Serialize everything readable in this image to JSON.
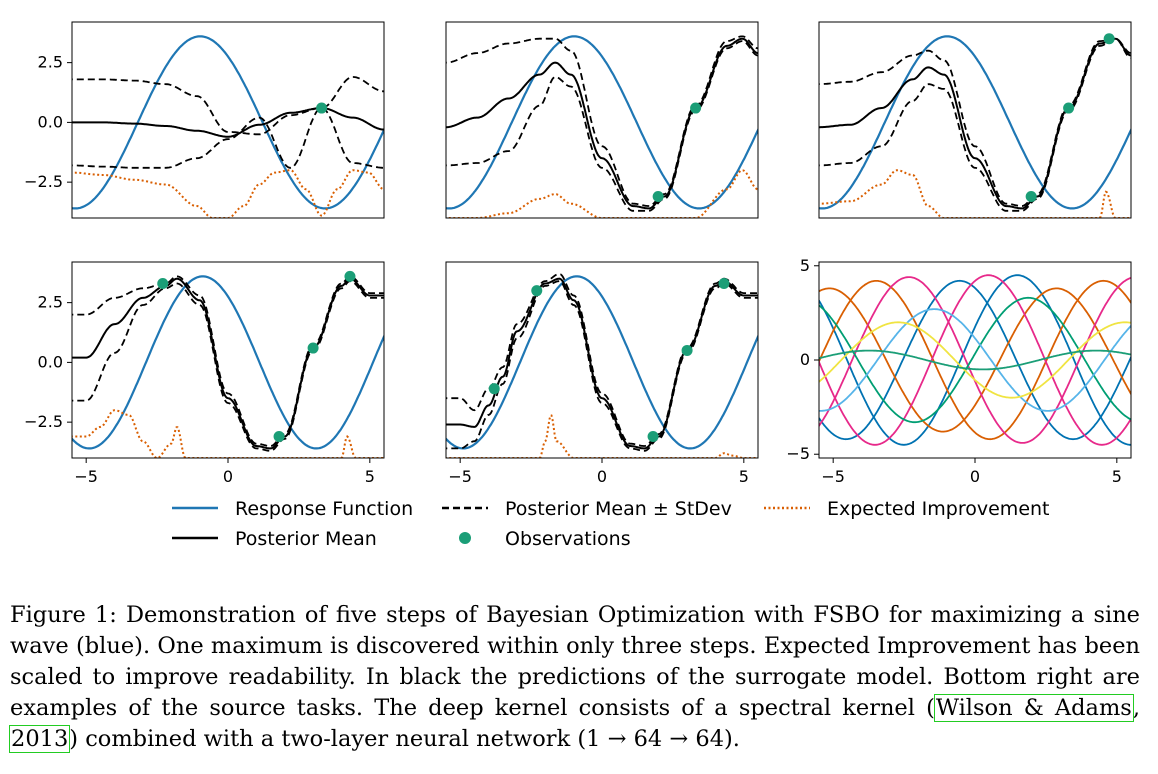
{
  "colors": {
    "response": "#1f77b4",
    "posterior": "#000000",
    "ei": "#d95f02",
    "obs": "#1b9e77",
    "source_tasks": [
      "#1b9e77",
      "#d95f02",
      "#e7298a",
      "#0072b2",
      "#56b4e9",
      "#f0e442",
      "#009e73",
      "#cc79a7"
    ]
  },
  "chart_data": [
    {
      "type": "line",
      "panel": 1,
      "xlim": [
        -5,
        5
      ],
      "ylim": [
        -4,
        4.2
      ],
      "xticks": [],
      "yticks": [
        "2.5",
        "0.0",
        "−2.5"
      ],
      "series": [
        {
          "name": "Response Function",
          "kind": "response"
        },
        {
          "name": "Posterior Mean",
          "kind": "mean",
          "x": [
            -5,
            -4,
            -3,
            -2,
            -1,
            0,
            1,
            2,
            3,
            4,
            5
          ],
          "y": [
            0,
            0,
            -0.05,
            -0.15,
            -0.35,
            -0.6,
            -0.1,
            0.4,
            0.6,
            0.2,
            -0.3
          ]
        },
        {
          "name": "Posterior Mean ± StDev",
          "kind": "upper",
          "x": [
            -5,
            -4,
            -3,
            -2,
            -1,
            0,
            1,
            2,
            3,
            4,
            5
          ],
          "y": [
            1.8,
            1.8,
            1.75,
            1.6,
            1.1,
            -0.4,
            -0.5,
            0.3,
            0.6,
            1.9,
            1.3
          ]
        },
        {
          "name": "Posterior Mean ± StDev",
          "kind": "lower",
          "x": [
            -5,
            -4,
            -3,
            -2,
            -1,
            0,
            1,
            2,
            3,
            4,
            5
          ],
          "y": [
            -1.8,
            -1.85,
            -1.9,
            -1.9,
            -1.5,
            -0.7,
            0.2,
            -1.9,
            0.6,
            -1.7,
            -1.9
          ]
        },
        {
          "name": "Expected Improvement",
          "kind": "ei",
          "x": [
            -5,
            -4,
            -3,
            -2,
            -1,
            -0.5,
            0,
            0.5,
            1,
            1.5,
            2,
            2.5,
            3,
            3.5,
            4,
            4.5,
            5
          ],
          "y": [
            -2.1,
            -2.2,
            -2.4,
            -2.6,
            -3.5,
            -4,
            -4,
            -3.5,
            -2.6,
            -2.1,
            -2,
            -2.8,
            -3.9,
            -2.8,
            -2,
            -2.1,
            -2.8
          ]
        }
      ],
      "observations": {
        "x": [
          3
        ],
        "y": [
          0.6
        ]
      }
    },
    {
      "type": "line",
      "panel": 2,
      "xlim": [
        -5,
        5
      ],
      "ylim": [
        -4,
        4.2
      ],
      "xticks": [],
      "yticks": [],
      "series": [
        {
          "name": "Response Function",
          "kind": "response"
        },
        {
          "name": "Posterior Mean",
          "kind": "mean",
          "x": [
            -5,
            -4,
            -3,
            -2,
            -1.5,
            -1,
            0,
            1,
            1.5,
            2,
            3,
            4,
            4.5,
            5
          ],
          "y": [
            -0.2,
            0.2,
            1,
            2,
            2.5,
            2,
            -1.5,
            -3.5,
            -3.6,
            -3.1,
            0.6,
            3.2,
            3.5,
            2.9
          ]
        },
        {
          "name": "Posterior Mean ± StDev",
          "kind": "upper",
          "x": [
            -5,
            -4,
            -3,
            -2,
            -1.5,
            -1,
            0,
            1,
            1.5,
            2,
            3,
            4,
            4.5,
            5
          ],
          "y": [
            2.5,
            2.9,
            3.3,
            3.5,
            3.5,
            3,
            -1,
            -3.4,
            -3.5,
            -3,
            0.7,
            3.4,
            3.6,
            3.1
          ]
        },
        {
          "name": "Posterior Mean ± StDev",
          "kind": "lower",
          "x": [
            -5,
            -4,
            -3,
            -2,
            -1.5,
            -1,
            0,
            1,
            1.5,
            2,
            3,
            4,
            4.5,
            5
          ],
          "y": [
            -1.8,
            -1.7,
            -1.2,
            0.7,
            1.9,
            1.5,
            -1.9,
            -3.7,
            -3.7,
            -3.2,
            0.5,
            3.1,
            3.4,
            2.8
          ]
        },
        {
          "name": "Expected Improvement",
          "kind": "ei",
          "x": [
            -5,
            -4,
            -3,
            -2,
            -1.5,
            -1,
            0,
            1,
            2,
            3,
            4,
            4.5,
            5
          ],
          "y": [
            -4,
            -4,
            -3.8,
            -3.2,
            -3,
            -3.4,
            -4,
            -4,
            -4,
            -4,
            -2.8,
            -2,
            -2.8
          ]
        }
      ],
      "observations": {
        "x": [
          1.8,
          3
        ],
        "y": [
          -3.1,
          0.6
        ]
      }
    },
    {
      "type": "line",
      "panel": 3,
      "xlim": [
        -5,
        5
      ],
      "ylim": [
        -4,
        4.2
      ],
      "xticks": [],
      "yticks": [],
      "series": [
        {
          "name": "Response Function",
          "kind": "response"
        },
        {
          "name": "Posterior Mean",
          "kind": "mean",
          "x": [
            -5,
            -4,
            -3,
            -2,
            -1.5,
            -1,
            0,
            1,
            1.5,
            2,
            3,
            4,
            4.5,
            5
          ],
          "y": [
            -0.2,
            -0.1,
            0.6,
            1.8,
            2.3,
            2,
            -1.5,
            -3.5,
            -3.6,
            -3.1,
            0.6,
            3.3,
            3.5,
            2.8
          ]
        },
        {
          "name": "Posterior Mean ± StDev",
          "kind": "upper",
          "x": [
            -5,
            -4,
            -3,
            -2,
            -1.5,
            -1,
            0,
            1,
            1.5,
            2,
            3,
            4,
            4.5,
            5
          ],
          "y": [
            1.6,
            1.7,
            2.1,
            2.8,
            3,
            2.6,
            -1,
            -3.4,
            -3.5,
            -3,
            0.7,
            3.4,
            3.5,
            2.9
          ]
        },
        {
          "name": "Posterior Mean ± StDev",
          "kind": "lower",
          "x": [
            -5,
            -4,
            -3,
            -2,
            -1.5,
            -1,
            0,
            1,
            1.5,
            2,
            3,
            4,
            4.5,
            5
          ],
          "y": [
            -1.8,
            -1.7,
            -1,
            0.9,
            1.6,
            1.4,
            -1.9,
            -3.7,
            -3.7,
            -3.2,
            0.5,
            3.2,
            3.5,
            2.7
          ]
        },
        {
          "name": "Expected Improvement",
          "kind": "ei",
          "x": [
            -5,
            -4,
            -3,
            -2.5,
            -2,
            -1.5,
            -1,
            0,
            1,
            2,
            3,
            4,
            4.2,
            4.5,
            5
          ],
          "y": [
            -3.4,
            -3.3,
            -2.6,
            -2,
            -2.2,
            -3.5,
            -4,
            -4,
            -4,
            -4,
            -4,
            -4,
            -2.9,
            -4,
            -4
          ]
        }
      ],
      "observations": {
        "x": [
          1.8,
          3,
          4.3
        ],
        "y": [
          -3.1,
          0.6,
          3.5
        ]
      }
    },
    {
      "type": "line",
      "panel": 4,
      "xlim": [
        -5.5,
        5.5
      ],
      "ylim": [
        -4,
        4.2
      ],
      "xticks": [
        "−5",
        "0",
        "5"
      ],
      "yticks": [
        "2.5",
        "0.0",
        "−2.5"
      ],
      "series": [
        {
          "name": "Response Function",
          "kind": "response"
        },
        {
          "name": "Posterior Mean",
          "kind": "mean",
          "x": [
            -5,
            -4,
            -3,
            -2.2,
            -1.8,
            -1,
            0,
            1,
            1.5,
            2,
            3,
            4,
            4.3,
            5
          ],
          "y": [
            0.2,
            1.6,
            2.7,
            3.2,
            3.5,
            2.6,
            -1.5,
            -3.5,
            -3.6,
            -3.1,
            0.6,
            3.2,
            3.5,
            2.8
          ]
        },
        {
          "name": "Posterior Mean ± StDev",
          "kind": "upper",
          "x": [
            -5,
            -4,
            -3,
            -2.2,
            -1.8,
            -1,
            0,
            1,
            1.5,
            2,
            3,
            4,
            4.3,
            5
          ],
          "y": [
            2,
            2.7,
            3.1,
            3.3,
            3.6,
            2.8,
            -1.3,
            -3.4,
            -3.5,
            -3,
            0.7,
            3.3,
            3.6,
            2.9
          ]
        },
        {
          "name": "Posterior Mean ± StDev",
          "kind": "lower",
          "x": [
            -5,
            -4,
            -3,
            -2.2,
            -1.8,
            -1,
            0,
            1,
            1.5,
            2,
            3,
            4,
            4.3,
            5
          ],
          "y": [
            -1.6,
            0.4,
            2.4,
            3.1,
            3.3,
            2.4,
            -1.7,
            -3.6,
            -3.7,
            -3.2,
            0.5,
            3.1,
            3.4,
            2.7
          ]
        },
        {
          "name": "Expected Improvement",
          "kind": "ei",
          "x": [
            -5,
            -4.5,
            -4,
            -3.5,
            -3,
            -2.5,
            -2,
            -1.8,
            -1.5,
            -1,
            0,
            1,
            2,
            3,
            4,
            4.2,
            4.5,
            5
          ],
          "y": [
            -3.1,
            -2.7,
            -2,
            -2.2,
            -3.3,
            -4,
            -3.4,
            -2.7,
            -4,
            -4,
            -4,
            -4,
            -4,
            -4,
            -4,
            -3.1,
            -4,
            -4
          ]
        }
      ],
      "observations": {
        "x": [
          -2.3,
          1.8,
          3,
          4.3
        ],
        "y": [
          3.3,
          -3.1,
          0.6,
          3.6
        ]
      }
    },
    {
      "type": "line",
      "panel": 5,
      "xlim": [
        -5.5,
        5.5
      ],
      "ylim": [
        -4,
        4.2
      ],
      "xticks": [
        "−5",
        "0",
        "5"
      ],
      "yticks": [],
      "series": [
        {
          "name": "Response Function",
          "kind": "response"
        },
        {
          "name": "Posterior Mean",
          "kind": "mean",
          "x": [
            -5,
            -4.5,
            -4,
            -3.5,
            -3,
            -2,
            -1.5,
            -1,
            0,
            1,
            1.5,
            2,
            3,
            4,
            4.3,
            5
          ],
          "y": [
            -2.6,
            -2.7,
            -1.8,
            -0.6,
            1.3,
            3.3,
            3.5,
            2.6,
            -1.5,
            -3.5,
            -3.6,
            -3.1,
            0.5,
            3.2,
            3.4,
            2.8
          ]
        },
        {
          "name": "Posterior Mean ± StDev",
          "kind": "upper",
          "x": [
            -5,
            -4.5,
            -4,
            -3.5,
            -3,
            -2,
            -1.5,
            -1,
            0,
            1,
            1.5,
            2,
            3,
            4,
            4.3,
            5
          ],
          "y": [
            -1.5,
            -2,
            -1.1,
            -0.2,
            1.6,
            3.4,
            3.7,
            2.8,
            -1.3,
            -3.4,
            -3.5,
            -3,
            0.6,
            3.3,
            3.5,
            2.9
          ]
        },
        {
          "name": "Posterior Mean ± StDev",
          "kind": "lower",
          "x": [
            -5,
            -4.5,
            -4,
            -3.5,
            -3,
            -2,
            -1.5,
            -1,
            0,
            1,
            1.5,
            2,
            3,
            4,
            4.3,
            5
          ],
          "y": [
            -3.6,
            -3.3,
            -2.2,
            -0.9,
            1,
            3.2,
            3.4,
            2.4,
            -1.7,
            -3.6,
            -3.7,
            -3.2,
            0.4,
            3.1,
            3.3,
            2.7
          ]
        },
        {
          "name": "Expected Improvement",
          "kind": "ei",
          "x": [
            -5,
            -4,
            -3,
            -2.2,
            -2,
            -1.8,
            -1.6,
            -1,
            0,
            1,
            2,
            3,
            4,
            4.3,
            4.6,
            5
          ],
          "y": [
            -4,
            -4,
            -4,
            -4,
            -3.3,
            -2.2,
            -3.3,
            -4,
            -4,
            -4,
            -4,
            -4,
            -4,
            -3.8,
            -3.9,
            -4
          ]
        }
      ],
      "observations": {
        "x": [
          -3.8,
          -2.3,
          1.8,
          3,
          4.3
        ],
        "y": [
          -1.1,
          3,
          -3.1,
          0.5,
          3.3
        ]
      }
    },
    {
      "type": "line",
      "panel": 6,
      "title": "",
      "xlim": [
        -5.5,
        5.5
      ],
      "ylim": [
        -5.2,
        5.2
      ],
      "xticks": [
        "−5",
        "0",
        "5"
      ],
      "yticks": [
        "5",
        "0",
        "−5"
      ],
      "series": [
        {
          "kind": "sine",
          "amp": 4.5,
          "freq": 0.785,
          "phase": 0.4,
          "color_index": 3
        },
        {
          "kind": "sine",
          "amp": 4.2,
          "freq": 0.785,
          "phase": 2.0,
          "color_index": 3
        },
        {
          "kind": "sine",
          "amp": 4.2,
          "freq": 0.785,
          "phase": 4.3,
          "color_index": 1
        },
        {
          "kind": "sine",
          "amp": 3.8,
          "freq": 0.785,
          "phase": 5.6,
          "color_index": 1
        },
        {
          "kind": "sine",
          "amp": 4.5,
          "freq": 0.785,
          "phase": 1.2,
          "color_index": 2
        },
        {
          "kind": "sine",
          "amp": 4.4,
          "freq": 0.785,
          "phase": 3.4,
          "color_index": 2
        },
        {
          "kind": "sine",
          "amp": 3.3,
          "freq": 0.785,
          "phase": 0.1,
          "color_index": 6
        },
        {
          "kind": "sine",
          "amp": 2.7,
          "freq": 0.785,
          "phase": 2.7,
          "color_index": 4
        },
        {
          "kind": "sine",
          "amp": 2.0,
          "freq": 0.785,
          "phase": 3.7,
          "color_index": 5
        },
        {
          "kind": "sine",
          "amp": 0.5,
          "freq": 0.785,
          "phase": 4.5,
          "color_index": 0
        }
      ]
    }
  ],
  "legend": [
    {
      "label": "Response Function",
      "kind": "response"
    },
    {
      "label": "Posterior Mean ± StDev",
      "kind": "dashed"
    },
    {
      "label": "Expected Improvement",
      "kind": "ei"
    },
    {
      "label": "Posterior Mean",
      "kind": "mean"
    },
    {
      "label": "Observations",
      "kind": "obs"
    }
  ],
  "caption": {
    "part1": "Figure 1: Demonstration of five steps of Bayesian Optimization with FSBO for maximizing a sine wave (blue). One maximum is discovered within only three steps. Expected Improvement has been scaled to improve readability.  In black the predictions of the surrogate model.  Bottom right are examples of the source tasks. The deep kernel consists of a spectral kernel (",
    "cite_authors": "Wilson & Adams",
    "cite_sep": ", ",
    "cite_year": "2013",
    "part2": ") combined with a two-layer neural network (1 → 64 → 64)."
  }
}
